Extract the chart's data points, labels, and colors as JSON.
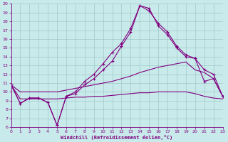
{
  "xlabel": "Windchill (Refroidissement éolien,°C)",
  "background_color": "#c8eaea",
  "grid_color": "#a0c8c8",
  "line_color": "#800080",
  "xlim": [
    0,
    23
  ],
  "ylim": [
    6,
    20
  ],
  "xticks": [
    0,
    1,
    2,
    3,
    4,
    5,
    6,
    7,
    8,
    9,
    10,
    11,
    12,
    13,
    14,
    15,
    16,
    17,
    18,
    19,
    20,
    21,
    22,
    23
  ],
  "yticks": [
    6,
    7,
    8,
    9,
    10,
    11,
    12,
    13,
    14,
    15,
    16,
    17,
    18,
    19,
    20
  ],
  "line_marked1": {
    "x": [
      0,
      1,
      2,
      3,
      4,
      5,
      6,
      7,
      8,
      9,
      10,
      11,
      12,
      13,
      14,
      15,
      16,
      17,
      18,
      19,
      20,
      21,
      22,
      23
    ],
    "y": [
      10.8,
      8.7,
      9.3,
      9.3,
      8.8,
      6.2,
      9.5,
      9.8,
      10.8,
      11.5,
      12.5,
      13.5,
      15.2,
      16.8,
      19.8,
      19.5,
      17.5,
      16.5,
      15.0,
      14.0,
      13.8,
      11.2,
      11.5,
      9.5
    ]
  },
  "line_marked2": {
    "x": [
      0,
      1,
      2,
      3,
      4,
      5,
      6,
      7,
      8,
      9,
      10,
      11,
      12,
      13,
      14,
      15,
      16,
      17,
      18,
      19,
      20,
      21,
      22,
      23
    ],
    "y": [
      10.8,
      8.7,
      9.3,
      9.3,
      8.8,
      6.2,
      9.5,
      10.0,
      11.2,
      12.0,
      13.2,
      14.5,
      15.5,
      17.2,
      19.8,
      19.2,
      17.8,
      16.8,
      15.2,
      14.2,
      13.8,
      12.5,
      12.0,
      9.5
    ]
  },
  "line_flat1": {
    "x": [
      0,
      1,
      2,
      3,
      4,
      5,
      6,
      7,
      8,
      9,
      10,
      11,
      12,
      13,
      14,
      15,
      16,
      17,
      18,
      19,
      20,
      21,
      22,
      23
    ],
    "y": [
      10.8,
      10.0,
      10.0,
      10.0,
      10.0,
      10.0,
      10.2,
      10.4,
      10.6,
      10.8,
      11.0,
      11.2,
      11.5,
      11.8,
      12.2,
      12.5,
      12.8,
      13.0,
      13.2,
      13.4,
      12.5,
      12.2,
      11.5,
      9.5
    ]
  },
  "line_flat2": {
    "x": [
      0,
      1,
      2,
      3,
      4,
      5,
      6,
      7,
      8,
      9,
      10,
      11,
      12,
      13,
      14,
      15,
      16,
      17,
      18,
      19,
      20,
      21,
      22,
      23
    ],
    "y": [
      10.8,
      9.2,
      9.2,
      9.2,
      9.2,
      9.2,
      9.3,
      9.4,
      9.4,
      9.5,
      9.5,
      9.6,
      9.7,
      9.8,
      9.9,
      9.9,
      10.0,
      10.0,
      10.0,
      10.0,
      9.8,
      9.5,
      9.3,
      9.2
    ]
  }
}
